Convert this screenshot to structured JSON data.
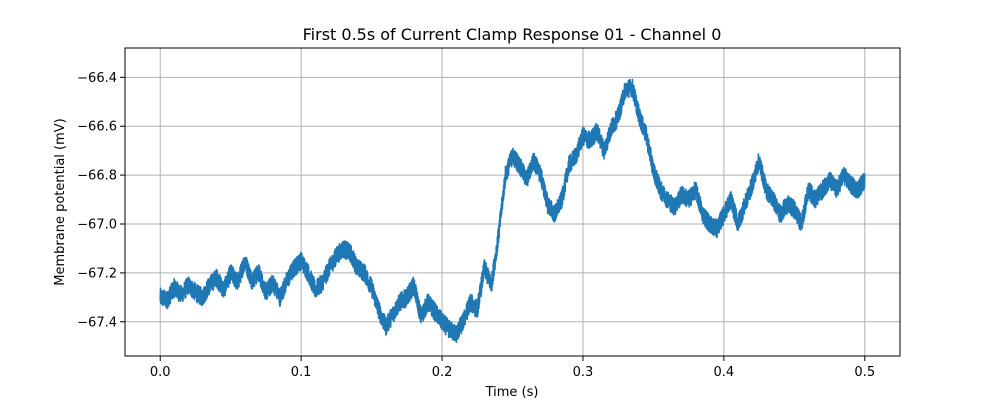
{
  "chart_data": {
    "type": "line",
    "title": "First 0.5s of Current Clamp Response 01 - Channel 0",
    "xlabel": "Time (s)",
    "ylabel": "Membrane potential (mV)",
    "xlim": [
      -0.025,
      0.525
    ],
    "ylim": [
      -67.54,
      -66.28
    ],
    "xticks": [
      0.0,
      0.1,
      0.2,
      0.3,
      0.4,
      0.5
    ],
    "xtick_labels": [
      "0.0",
      "0.1",
      "0.2",
      "0.3",
      "0.4",
      "0.5"
    ],
    "yticks": [
      -67.4,
      -67.2,
      -67.0,
      -66.8,
      -66.6,
      -66.4
    ],
    "ytick_labels": [
      "−67.4",
      "−67.2",
      "−67.0",
      "−66.8",
      "−66.6",
      "−66.4"
    ],
    "grid": true,
    "series": [
      {
        "color": "#1f77b4",
        "x": [
          0.0,
          0.005,
          0.01,
          0.015,
          0.02,
          0.025,
          0.03,
          0.035,
          0.04,
          0.045,
          0.05,
          0.055,
          0.06,
          0.065,
          0.07,
          0.075,
          0.08,
          0.085,
          0.09,
          0.095,
          0.1,
          0.105,
          0.11,
          0.115,
          0.12,
          0.125,
          0.13,
          0.135,
          0.14,
          0.145,
          0.15,
          0.155,
          0.16,
          0.165,
          0.17,
          0.175,
          0.18,
          0.185,
          0.19,
          0.195,
          0.2,
          0.205,
          0.21,
          0.215,
          0.22,
          0.225,
          0.23,
          0.235,
          0.24,
          0.245,
          0.25,
          0.255,
          0.26,
          0.265,
          0.27,
          0.275,
          0.28,
          0.285,
          0.29,
          0.295,
          0.3,
          0.305,
          0.31,
          0.315,
          0.32,
          0.325,
          0.33,
          0.335,
          0.34,
          0.345,
          0.35,
          0.355,
          0.36,
          0.365,
          0.37,
          0.375,
          0.38,
          0.385,
          0.39,
          0.395,
          0.4,
          0.405,
          0.41,
          0.415,
          0.42,
          0.425,
          0.43,
          0.435,
          0.44,
          0.445,
          0.45,
          0.455,
          0.46,
          0.465,
          0.47,
          0.475,
          0.48,
          0.485,
          0.49,
          0.495,
          0.5
        ],
        "y": [
          -67.3,
          -67.31,
          -67.26,
          -67.29,
          -67.25,
          -67.28,
          -67.3,
          -67.25,
          -67.22,
          -67.27,
          -67.2,
          -67.24,
          -67.15,
          -67.23,
          -67.2,
          -67.28,
          -67.24,
          -67.3,
          -67.23,
          -67.18,
          -67.15,
          -67.2,
          -67.27,
          -67.24,
          -67.18,
          -67.13,
          -67.1,
          -67.12,
          -67.18,
          -67.2,
          -67.26,
          -67.35,
          -67.42,
          -67.37,
          -67.32,
          -67.3,
          -67.25,
          -67.38,
          -67.32,
          -67.36,
          -67.4,
          -67.43,
          -67.45,
          -67.4,
          -67.32,
          -67.35,
          -67.18,
          -67.25,
          -67.05,
          -66.8,
          -66.72,
          -66.76,
          -66.82,
          -66.74,
          -66.8,
          -66.92,
          -66.96,
          -66.9,
          -66.76,
          -66.72,
          -66.64,
          -66.66,
          -66.62,
          -66.7,
          -66.61,
          -66.56,
          -66.45,
          -66.44,
          -66.56,
          -66.64,
          -66.78,
          -66.86,
          -66.9,
          -66.93,
          -66.88,
          -66.9,
          -66.86,
          -66.96,
          -67.0,
          -67.02,
          -66.96,
          -66.9,
          -67.0,
          -66.92,
          -66.84,
          -66.74,
          -66.86,
          -66.9,
          -66.96,
          -66.92,
          -66.94,
          -67.0,
          -66.86,
          -66.9,
          -66.86,
          -66.82,
          -66.86,
          -66.8,
          -66.84,
          -66.86,
          -66.82
        ]
      }
    ]
  }
}
